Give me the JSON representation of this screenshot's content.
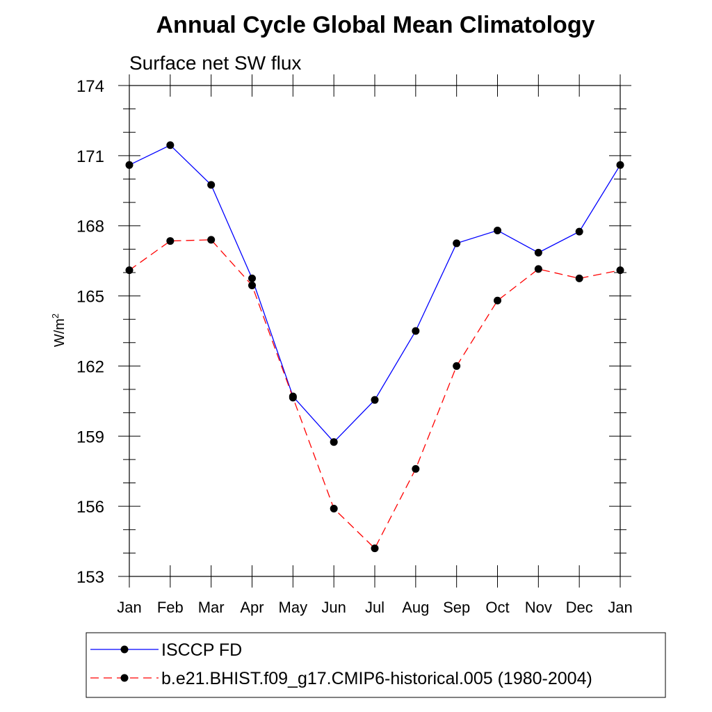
{
  "chart_data": {
    "type": "line",
    "title": "Annual Cycle Global Mean Climatology",
    "subtitle": "Surface net SW flux",
    "xlabel": "",
    "ylabel": "W/m",
    "ylabel_superscript": "2",
    "categories": [
      "Jan",
      "Feb",
      "Mar",
      "Apr",
      "May",
      "Jun",
      "Jul",
      "Aug",
      "Sep",
      "Oct",
      "Nov",
      "Dec",
      "Jan"
    ],
    "ylim": [
      153,
      174
    ],
    "yticks": [
      153,
      156,
      159,
      162,
      165,
      168,
      171,
      174
    ],
    "grid": false,
    "legend_position": "bottom",
    "series": [
      {
        "name": "ISCCP FD",
        "color": "#0000ff",
        "dash": "solid",
        "marker": "dot",
        "values": [
          170.6,
          171.45,
          169.75,
          165.75,
          160.7,
          158.75,
          160.55,
          163.5,
          167.25,
          167.8,
          166.85,
          167.75,
          170.6
        ]
      },
      {
        "name": "b.e21.BHIST.f09_g17.CMIP6-historical.005 (1980-2004)",
        "color": "#ff0000",
        "dash": "dashed",
        "marker": "dot",
        "values": [
          166.1,
          167.35,
          167.4,
          165.45,
          160.65,
          155.9,
          154.2,
          157.6,
          162.0,
          164.8,
          166.15,
          165.75,
          166.1
        ]
      }
    ]
  }
}
